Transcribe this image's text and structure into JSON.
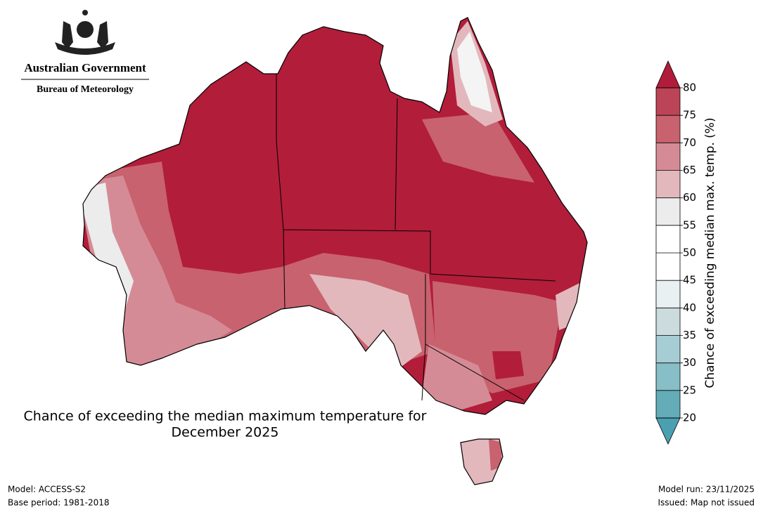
{
  "header": {
    "government": "Australian Government",
    "bureau": "Bureau of Meteorology"
  },
  "title": [
    "Chance of exceeding the median maximum temperature for",
    "December 2025"
  ],
  "colorbar": {
    "label": "Chance of exceeding median max. temp. (%)",
    "ticks": [
      20,
      25,
      30,
      35,
      40,
      45,
      50,
      55,
      60,
      65,
      70,
      75,
      80
    ],
    "colors": [
      "#63acb8",
      "#87bec7",
      "#a6cdd3",
      "#cbdbde",
      "#e8f0f2",
      "#ffffff",
      "#ffffff",
      "#ececec",
      "#e2b8bd",
      "#d58b95",
      "#c8626f",
      "#bb4456"
    ],
    "under_color": "#4aa0b1",
    "over_color": "#b01c3a"
  },
  "footer": {
    "model": "Model: ACCESS-S2",
    "base_period": "Base period: 1981-2018",
    "model_run": "Model run: 23/11/2025",
    "issued": "Issued: Map not issued"
  }
}
